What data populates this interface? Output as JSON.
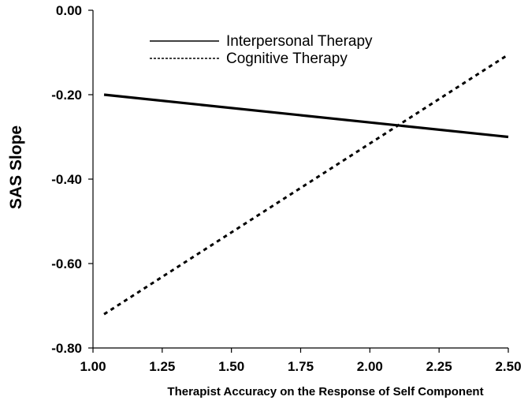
{
  "chart_data": {
    "type": "line",
    "title": "",
    "xlabel": "Therapist Accuracy on the Response of Self Component",
    "ylabel": "SAS Slope",
    "xlim": [
      1.0,
      2.5
    ],
    "ylim": [
      -0.8,
      0.0
    ],
    "x_ticks": [
      1.0,
      1.25,
      1.5,
      1.75,
      2.0,
      2.25,
      2.5
    ],
    "x_tick_labels": [
      "1.00",
      "1.25",
      "1.50",
      "1.75",
      "2.00",
      "2.25",
      "2.50"
    ],
    "y_ticks": [
      0.0,
      -0.2,
      -0.4,
      -0.6,
      -0.8
    ],
    "y_tick_labels": [
      "0.00",
      "-0.20",
      "-0.40",
      "-0.60",
      "-0.80"
    ],
    "grid": false,
    "legend_position": "top",
    "series": [
      {
        "name": "Interpersonal Therapy",
        "style": "solid",
        "color": "#000000",
        "x": [
          1.04,
          2.5
        ],
        "y": [
          -0.2,
          -0.3
        ]
      },
      {
        "name": "Cognitive Therapy",
        "style": "dashed",
        "color": "#000000",
        "x": [
          1.04,
          2.5
        ],
        "y": [
          -0.72,
          -0.105
        ]
      }
    ]
  }
}
